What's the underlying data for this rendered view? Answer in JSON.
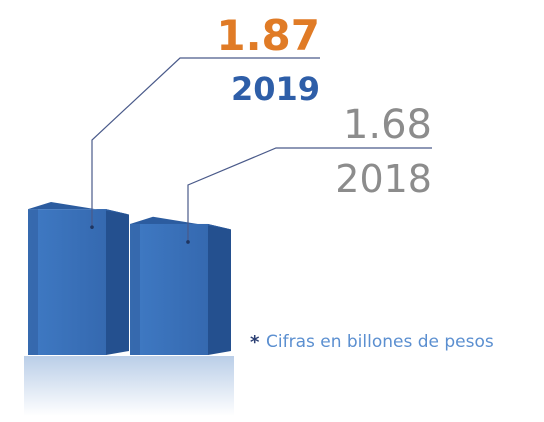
{
  "chart_data": {
    "type": "bar",
    "categories": [
      "2019",
      "2018"
    ],
    "values": [
      1.87,
      1.68
    ],
    "color": "#3a73bd",
    "value_label_colors": [
      "#e07b26",
      "#8c8c8c"
    ],
    "category_label_colors": [
      "#2e5ea8",
      "#8c8c8c"
    ],
    "labels_bold": [
      true,
      false
    ],
    "note_marker": "*",
    "note": "Cifras en billones de pesos",
    "note_color": "#5b8fd0",
    "note_marker_color": "#2b3f73"
  }
}
